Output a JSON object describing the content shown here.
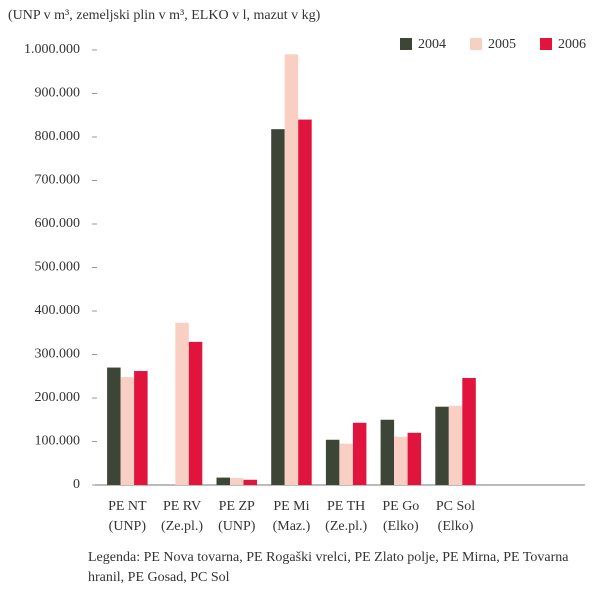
{
  "chart_data": {
    "type": "bar",
    "title": "(UNP v m³, zemeljski plin v m³, ELKO v l, mazut v kg)",
    "categories": [
      [
        "PE NT",
        "(UNP)"
      ],
      [
        "PE RV",
        "(Ze.pl.)"
      ],
      [
        "PE ZP",
        "(UNP)"
      ],
      [
        "PE Mi",
        "(Maz.)"
      ],
      [
        "PE TH",
        "(Ze.pl.)"
      ],
      [
        "PE Go",
        "(Elko)"
      ],
      [
        "PC Sol",
        "(Elko)"
      ]
    ],
    "series": [
      {
        "name": "2004",
        "color": "#3d4536",
        "values": [
          270000,
          null,
          17000,
          818000,
          104000,
          150000,
          180000
        ]
      },
      {
        "name": "2005",
        "color": "#f9cfc4",
        "values": [
          248000,
          373000,
          16000,
          990000,
          95000,
          111000,
          182000
        ]
      },
      {
        "name": "2006",
        "color": "#e0143c",
        "values": [
          262000,
          329000,
          12000,
          840000,
          143000,
          120000,
          246000
        ]
      }
    ],
    "ylim": [
      0,
      1000000
    ],
    "yticks": [
      0,
      {
        "value": 100000,
        "label": "100.000"
      },
      {
        "value": 200000,
        "label": "200.000"
      },
      {
        "value": 300000,
        "label": "300.000"
      },
      {
        "value": 400000,
        "label": "400.000"
      },
      {
        "value": 500000,
        "label": "500.000"
      },
      {
        "value": 600000,
        "label": "600.000"
      },
      {
        "value": 700000,
        "label": "700.000"
      },
      {
        "value": 800000,
        "label": "800.000"
      },
      {
        "value": 900000,
        "label": "900.000"
      },
      {
        "value": 1000000,
        "label": "1.000.000"
      }
    ],
    "legend": "top-right",
    "note": "Legenda: PE Nova tovarna, PE Rogaški vrelci, PE Zlato polje, PE Mirna, PE Tovarna hranil, PE Gosad, PC Sol"
  }
}
